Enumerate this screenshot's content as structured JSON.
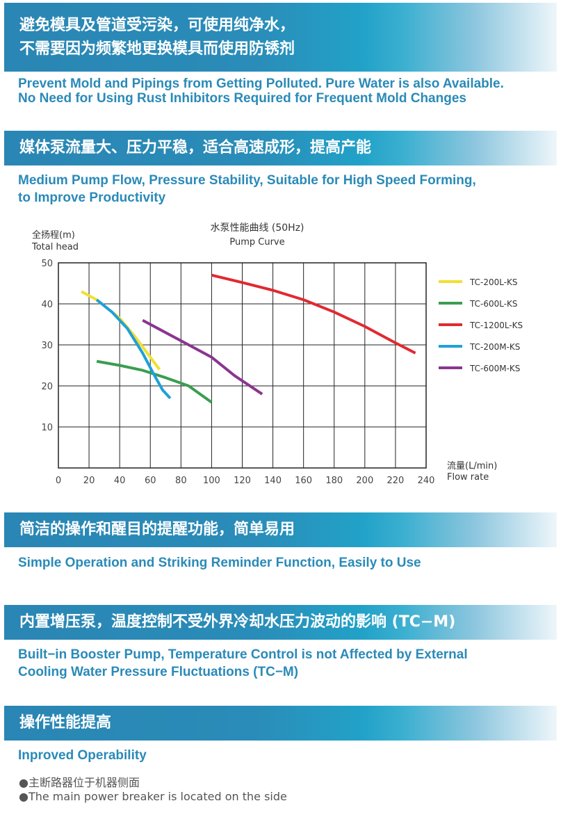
{
  "sections": [
    {
      "zh": [
        "避免模具及管道受污染，可使用纯净水，",
        "不需要因为频繁地更换模具而使用防锈剂"
      ],
      "en": [
        "Prevent Mold and Pipings from Getting Polluted. Pure Water is also Available.",
        "No Need for Using Rust Inhibitors Required for Frequent Mold Changes"
      ]
    },
    {
      "zh": [
        "媒体泵流量大、压力平稳，适合高速成形，提高产能"
      ],
      "en": [
        "Medium Pump Flow, Pressure Stability, Suitable for High Speed Forming,",
        "to Improve Productivity"
      ]
    },
    {
      "zh": [
        "简洁的操作和醒目的提醒功能，简单易用"
      ],
      "en": [
        "Simple Operation and Striking Reminder Function, Easily to Use"
      ]
    },
    {
      "zh": [
        "内置增压泵，温度控制不受外界冷却水压力波动的影响 (TC−M)"
      ],
      "en": [
        "Built−in Booster Pump, Temperature Control is not Affected by External",
        "Cooling Water Pressure Fluctuations (TC−M)"
      ]
    },
    {
      "zh": [
        "操作性能提高"
      ],
      "en": [
        "Inproved Operability"
      ],
      "bullets": [
        "●主断路器位于机器侧面",
        "●The main power breaker is located on the side"
      ]
    }
  ],
  "chart_data": {
    "type": "line",
    "title": "水泵性能曲线 (50Hz)",
    "subtitle": "Pump Curve",
    "ylabel": [
      "全扬程(m)",
      "Total head"
    ],
    "xlabel": [
      "流量(L/min)",
      "Flow rate"
    ],
    "xlim": [
      0,
      240
    ],
    "ylim": [
      0,
      50
    ],
    "xticks": [
      "0",
      "20",
      "40",
      "60",
      "80",
      "100",
      "120",
      "140",
      "160",
      "180",
      "200",
      "220",
      "240"
    ],
    "yticks": [
      "10",
      "20",
      "30",
      "40",
      "50"
    ],
    "grid": true,
    "legend_position": "right",
    "series": [
      {
        "name": "TC-200L-KS",
        "color": "#f0e030",
        "points": [
          [
            15,
            43
          ],
          [
            25,
            41
          ],
          [
            40,
            36.5
          ],
          [
            50,
            32
          ],
          [
            58,
            28
          ],
          [
            66,
            24
          ]
        ]
      },
      {
        "name": "TC-600L-KS",
        "color": "#3a9e50",
        "points": [
          [
            25,
            26
          ],
          [
            40,
            25
          ],
          [
            55,
            23.8
          ],
          [
            70,
            22
          ],
          [
            85,
            20
          ],
          [
            100,
            16
          ]
        ]
      },
      {
        "name": "TC-1200L-KS",
        "color": "#e02a30",
        "points": [
          [
            100,
            47
          ],
          [
            120,
            45.2
          ],
          [
            140,
            43.3
          ],
          [
            160,
            41
          ],
          [
            180,
            38
          ],
          [
            200,
            34.5
          ],
          [
            220,
            30.5
          ],
          [
            233,
            28
          ]
        ]
      },
      {
        "name": "TC-200M-KS",
        "color": "#20a0d8",
        "points": [
          [
            25,
            41
          ],
          [
            35,
            38
          ],
          [
            45,
            34
          ],
          [
            55,
            28
          ],
          [
            62,
            23
          ],
          [
            68,
            19
          ],
          [
            73,
            17
          ]
        ]
      },
      {
        "name": "TC-600M-KS",
        "color": "#8a3590",
        "points": [
          [
            55,
            36
          ],
          [
            70,
            33
          ],
          [
            85,
            30
          ],
          [
            100,
            27
          ],
          [
            115,
            22.5
          ],
          [
            133,
            18
          ]
        ]
      }
    ]
  }
}
